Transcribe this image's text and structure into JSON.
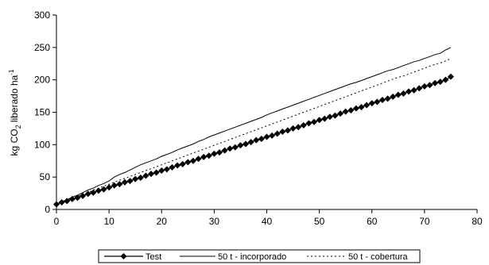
{
  "chart_data": {
    "type": "line",
    "ylabel": {
      "prefix": "kg CO",
      "subscript": "2",
      "suffix": " liberado ha",
      "superscript": "-1"
    },
    "xlabel": "",
    "xlim": [
      0,
      80
    ],
    "ylim": [
      0,
      300
    ],
    "xticks": [
      0,
      10,
      20,
      30,
      40,
      50,
      60,
      70,
      80
    ],
    "yticks": [
      0,
      50,
      100,
      150,
      200,
      250,
      300
    ],
    "grid": false,
    "legend_position": "bottom",
    "series": [
      {
        "name": "Test",
        "style": "solid-diamond-markers",
        "color": "#000000",
        "x": [
          0,
          1,
          2,
          3,
          4,
          5,
          6,
          7,
          8,
          9,
          10,
          11,
          12,
          13,
          14,
          15,
          16,
          17,
          18,
          19,
          20,
          21,
          22,
          23,
          24,
          25,
          26,
          27,
          28,
          29,
          30,
          31,
          32,
          33,
          34,
          35,
          36,
          37,
          38,
          39,
          40,
          41,
          42,
          43,
          44,
          45,
          46,
          47,
          48,
          49,
          50,
          51,
          52,
          53,
          54,
          55,
          56,
          57,
          58,
          59,
          60,
          61,
          62,
          63,
          64,
          65,
          66,
          67,
          68,
          69,
          70,
          71,
          72,
          73,
          74,
          75
        ],
        "y": [
          8,
          11,
          13,
          16,
          18,
          21,
          24,
          26,
          29,
          31,
          34,
          37,
          39,
          42,
          44,
          47,
          49,
          52,
          55,
          57,
          60,
          62,
          65,
          68,
          70,
          73,
          75,
          78,
          81,
          83,
          86,
          88,
          91,
          94,
          96,
          99,
          101,
          104,
          107,
          109,
          112,
          114,
          117,
          120,
          122,
          125,
          127,
          130,
          133,
          135,
          138,
          140,
          143,
          145,
          148,
          151,
          153,
          156,
          158,
          161,
          164,
          166,
          169,
          171,
          174,
          177,
          179,
          182,
          184,
          187,
          190,
          192,
          195,
          197,
          200,
          205
        ]
      },
      {
        "name": "50 t - incorporado",
        "style": "solid",
        "color": "#000000",
        "x": [
          0,
          1,
          2,
          3,
          4,
          5,
          6,
          7,
          8,
          9,
          10,
          11,
          12,
          13,
          14,
          15,
          16,
          17,
          18,
          19,
          20,
          21,
          22,
          23,
          24,
          25,
          26,
          27,
          28,
          29,
          30,
          31,
          32,
          33,
          34,
          35,
          36,
          37,
          38,
          39,
          40,
          41,
          42,
          43,
          44,
          45,
          46,
          47,
          48,
          49,
          50,
          51,
          52,
          53,
          54,
          55,
          56,
          57,
          58,
          59,
          60,
          61,
          62,
          63,
          64,
          65,
          66,
          67,
          68,
          69,
          70,
          71,
          72,
          73,
          74,
          75
        ],
        "y": [
          8,
          12,
          15,
          19,
          22,
          26,
          30,
          33,
          37,
          40,
          44,
          50,
          54,
          57,
          61,
          65,
          69,
          72,
          75,
          78,
          82,
          85,
          88,
          92,
          95,
          98,
          101,
          105,
          108,
          112,
          115,
          118,
          121,
          124,
          127,
          130,
          133,
          136,
          139,
          142,
          146,
          149,
          152,
          155,
          158,
          161,
          164,
          167,
          170,
          173,
          176,
          179,
          182,
          185,
          188,
          191,
          194,
          196,
          199,
          202,
          205,
          208,
          211,
          214,
          216,
          219,
          222,
          225,
          228,
          230,
          233,
          236,
          239,
          241,
          246,
          250
        ]
      },
      {
        "name": "50 t - cobertura",
        "style": "dotted",
        "color": "#000000",
        "x": [
          0,
          1,
          2,
          3,
          4,
          5,
          6,
          7,
          8,
          9,
          10,
          11,
          12,
          13,
          14,
          15,
          16,
          17,
          18,
          19,
          20,
          21,
          22,
          23,
          24,
          25,
          26,
          27,
          28,
          29,
          30,
          31,
          32,
          33,
          34,
          35,
          36,
          37,
          38,
          39,
          40,
          41,
          42,
          43,
          44,
          45,
          46,
          47,
          48,
          49,
          50,
          51,
          52,
          53,
          54,
          55,
          56,
          57,
          58,
          59,
          60,
          61,
          62,
          63,
          64,
          65,
          66,
          67,
          68,
          69,
          70,
          71,
          72,
          73,
          74,
          75
        ],
        "y": [
          8,
          11,
          14,
          17,
          20,
          23,
          26,
          30,
          33,
          36,
          39,
          42,
          45,
          48,
          51,
          54,
          57,
          60,
          63,
          66,
          69,
          72,
          75,
          78,
          81,
          84,
          87,
          90,
          93,
          96,
          99,
          102,
          105,
          108,
          111,
          114,
          117,
          120,
          123,
          126,
          129,
          132,
          135,
          138,
          141,
          144,
          147,
          150,
          153,
          156,
          159,
          162,
          165,
          168,
          171,
          174,
          177,
          180,
          183,
          186,
          189,
          192,
          195,
          198,
          201,
          204,
          206,
          209,
          212,
          215,
          218,
          221,
          224,
          226,
          229,
          233
        ]
      }
    ]
  }
}
